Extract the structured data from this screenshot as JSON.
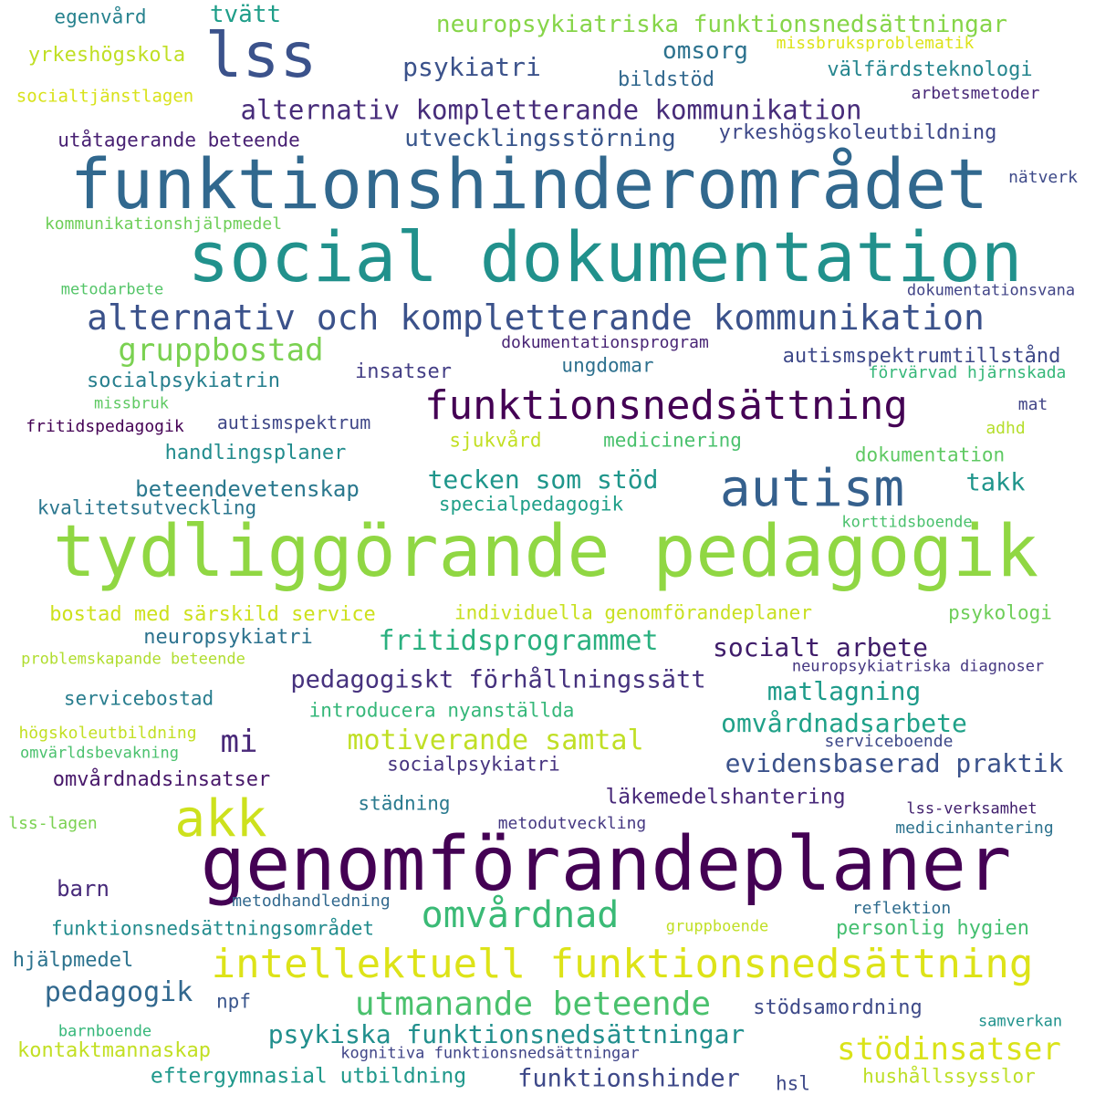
{
  "words": [
    {
      "text": "funktionshinderområdet",
      "color": "#31688e"
    },
    {
      "text": "social dokumentation",
      "color": "#21918c"
    },
    {
      "text": "tydliggörande pedagogik",
      "color": "#90d743"
    },
    {
      "text": "genomförandeplaner",
      "color": "#440154"
    },
    {
      "text": "intellektuell funktionsnedsättning",
      "color": "#dde318"
    },
    {
      "text": "lss",
      "color": "#3b528b"
    },
    {
      "text": "akk",
      "color": "#cde11d"
    },
    {
      "text": "autism",
      "color": "#35608d"
    },
    {
      "text": "alternativ och kompletterande kommunikation",
      "color": "#3b528b"
    },
    {
      "text": "funktionsnedsättning",
      "color": "#440154"
    },
    {
      "text": "gruppbostad",
      "color": "#7ad151"
    },
    {
      "text": "omvårdnad",
      "color": "#3aba76"
    },
    {
      "text": "utmanande beteende",
      "color": "#4ac16d"
    },
    {
      "text": "alternativ kompletterande kommunikation",
      "color": "#472c7a"
    },
    {
      "text": "neuropsykiatriska funktionsnedsättningar",
      "color": "#86d549"
    },
    {
      "text": "psykiatri",
      "color": "#3b528b"
    },
    {
      "text": "utvecklingsstörning",
      "color": "#39568c"
    },
    {
      "text": "tvätt",
      "color": "#1f9e89"
    },
    {
      "text": "omsorg",
      "color": "#2c728e"
    },
    {
      "text": "egenvård",
      "color": "#26828e"
    },
    {
      "text": "yrkeshögskola",
      "color": "#c0df25"
    },
    {
      "text": "socialtjänstlagen",
      "color": "#d8e219"
    },
    {
      "text": "utåtagerande beteende",
      "color": "#482173"
    },
    {
      "text": "missbruksproblematik",
      "color": "#dde318"
    },
    {
      "text": "välfärdsteknologi",
      "color": "#25858e"
    },
    {
      "text": "bildstöd",
      "color": "#31688e"
    },
    {
      "text": "arbetsmetoder",
      "color": "#482878"
    },
    {
      "text": "yrkeshögskoleutbildning",
      "color": "#3e4989"
    },
    {
      "text": "nätverk",
      "color": "#3e4a89"
    },
    {
      "text": "kommunikationshjälpmedel",
      "color": "#6ece58"
    },
    {
      "text": "metodarbete",
      "color": "#54c568"
    },
    {
      "text": "dokumentationsvana",
      "color": "#414487"
    },
    {
      "text": "dokumentationsprogram",
      "color": "#482475"
    },
    {
      "text": "autismspektrumtillstånd",
      "color": "#3e4989"
    },
    {
      "text": "förvärvad hjärnskada",
      "color": "#35b779"
    },
    {
      "text": "socialpsykiatrin",
      "color": "#277f8e"
    },
    {
      "text": "insatser",
      "color": "#433e85"
    },
    {
      "text": "ungdomar",
      "color": "#2d708e"
    },
    {
      "text": "missbruk",
      "color": "#5ec962"
    },
    {
      "text": "fritidspedagogik",
      "color": "#440154"
    },
    {
      "text": "autismspektrum",
      "color": "#3f4788"
    },
    {
      "text": "mat",
      "color": "#414487"
    },
    {
      "text": "adhd",
      "color": "#b5de2b"
    },
    {
      "text": "sjukvård",
      "color": "#c2df23"
    },
    {
      "text": "medicinering",
      "color": "#4ac16d"
    },
    {
      "text": "handlingsplaner",
      "color": "#228c8d"
    },
    {
      "text": "dokumentation",
      "color": "#5ec962"
    },
    {
      "text": "tecken som stöd",
      "color": "#1f968b"
    },
    {
      "text": "takk",
      "color": "#1f958b"
    },
    {
      "text": "beteendevetenskap",
      "color": "#2a788e"
    },
    {
      "text": "kvalitetsutveckling",
      "color": "#2a768e"
    },
    {
      "text": "specialpedagogik",
      "color": "#1f9f88"
    },
    {
      "text": "korttidsboende",
      "color": "#4ac16d"
    },
    {
      "text": "bostad med särskild service",
      "color": "#cde11d"
    },
    {
      "text": "individuella genomförandeplaner",
      "color": "#c8e020"
    },
    {
      "text": "psykologi",
      "color": "#6ece58"
    },
    {
      "text": "neuropsykiatri",
      "color": "#2c728e"
    },
    {
      "text": "fritidsprogrammet",
      "color": "#2ab07f"
    },
    {
      "text": "socialt arbete",
      "color": "#3f1c6a"
    },
    {
      "text": "problemskapande beteende",
      "color": "#b0dd2f"
    },
    {
      "text": "neuropsykiatriska diagnoser",
      "color": "#453781"
    },
    {
      "text": "pedagogiskt förhållningssätt",
      "color": "#46327e"
    },
    {
      "text": "matlagning",
      "color": "#1e9b8a"
    },
    {
      "text": "servicebostad",
      "color": "#287d8e"
    },
    {
      "text": "introducera nyanställda",
      "color": "#35b779"
    },
    {
      "text": "omvårdnadsarbete",
      "color": "#1fa188"
    },
    {
      "text": "högskoleutbildning",
      "color": "#c2df23"
    },
    {
      "text": "mi",
      "color": "#482878"
    },
    {
      "text": "motiverande samtal",
      "color": "#c0df25"
    },
    {
      "text": "omvärldsbevakning",
      "color": "#4ac16d"
    },
    {
      "text": "serviceboende",
      "color": "#3e4989"
    },
    {
      "text": "evidensbaserad praktik",
      "color": "#3b528b"
    },
    {
      "text": "socialpsykiatri",
      "color": "#46337f"
    },
    {
      "text": "omvårdnadsinsatser",
      "color": "#48186a"
    },
    {
      "text": "läkemedelshantering",
      "color": "#482979"
    },
    {
      "text": "städning",
      "color": "#297a8e"
    },
    {
      "text": "lss-verksamhet",
      "color": "#3f1d6b"
    },
    {
      "text": "lss-lagen",
      "color": "#7ad151"
    },
    {
      "text": "metodutveckling",
      "color": "#453882"
    },
    {
      "text": "medicinhantering",
      "color": "#2c728e"
    },
    {
      "text": "barn",
      "color": "#472a7a"
    },
    {
      "text": "metodhandledning",
      "color": "#31688e"
    },
    {
      "text": "reflektion",
      "color": "#2f6c8e"
    },
    {
      "text": "funktionsnedsättningsområdet",
      "color": "#228b8d"
    },
    {
      "text": "gruppboende",
      "color": "#c0df25"
    },
    {
      "text": "personlig hygien",
      "color": "#44bf70"
    },
    {
      "text": "hjälpmedel",
      "color": "#2c738e"
    },
    {
      "text": "pedagogik",
      "color": "#31688e"
    },
    {
      "text": "npf",
      "color": "#39558c"
    },
    {
      "text": "stödsamordning",
      "color": "#3e4a89"
    },
    {
      "text": "samverkan",
      "color": "#20928c"
    },
    {
      "text": "psykiska funktionsnedsättningar",
      "color": "#218f8d"
    },
    {
      "text": "barnboende",
      "color": "#35b779"
    },
    {
      "text": "kontaktmannaskap",
      "color": "#c2df23"
    },
    {
      "text": "stödinsatser",
      "color": "#dae319"
    },
    {
      "text": "kognitiva funktionsnedsättningar",
      "color": "#404588"
    },
    {
      "text": "eftergymnasial utbildning",
      "color": "#1f988b"
    },
    {
      "text": "funktionshinder",
      "color": "#3e4989"
    },
    {
      "text": "hsl",
      "color": "#3e4989"
    },
    {
      "text": "hushållssysslor",
      "color": "#bddf26"
    }
  ]
}
